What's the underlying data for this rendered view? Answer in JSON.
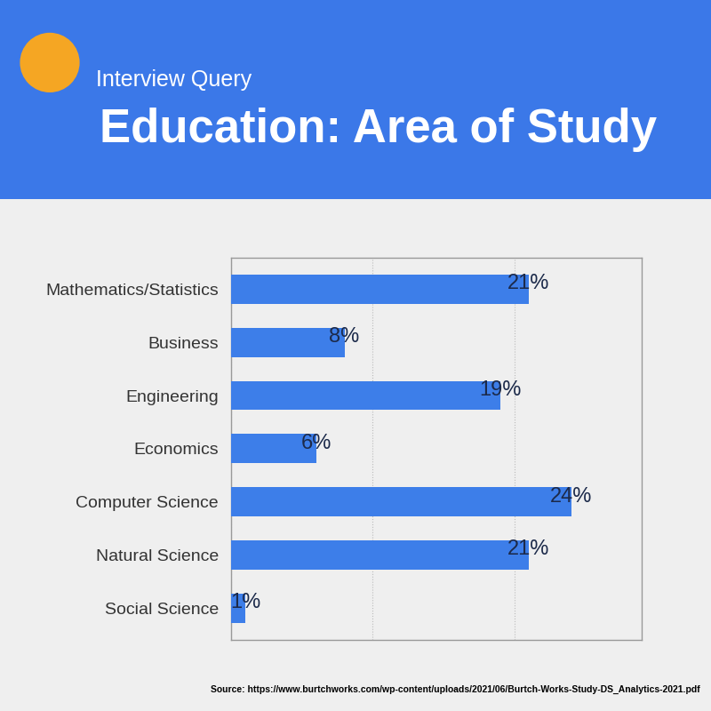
{
  "chart_data": {
    "type": "bar",
    "orientation": "horizontal",
    "subtitle": "Interview Query",
    "title": "Education: Area of Study",
    "categories": [
      "Mathematics/Statistics",
      "Business",
      "Engineering",
      "Economics",
      "Computer Science",
      "Natural Science",
      "Social Science"
    ],
    "values": [
      21,
      8,
      19,
      6,
      24,
      21,
      1
    ],
    "value_labels": [
      "21%",
      "8%",
      "19%",
      "6%",
      "24%",
      "21%",
      "1%"
    ],
    "data_labels": true,
    "color": "#3d7ee9",
    "xlim": [
      0,
      29
    ],
    "xticks": [
      0,
      10,
      20
    ],
    "tick_labels": "y",
    "grid": true,
    "annotations": [
      "Source: https://www.burtchworks.com/wp-content/uploads/2021/06/Burtch-Works-Study-DS_Analytics-2021.pdf"
    ]
  }
}
